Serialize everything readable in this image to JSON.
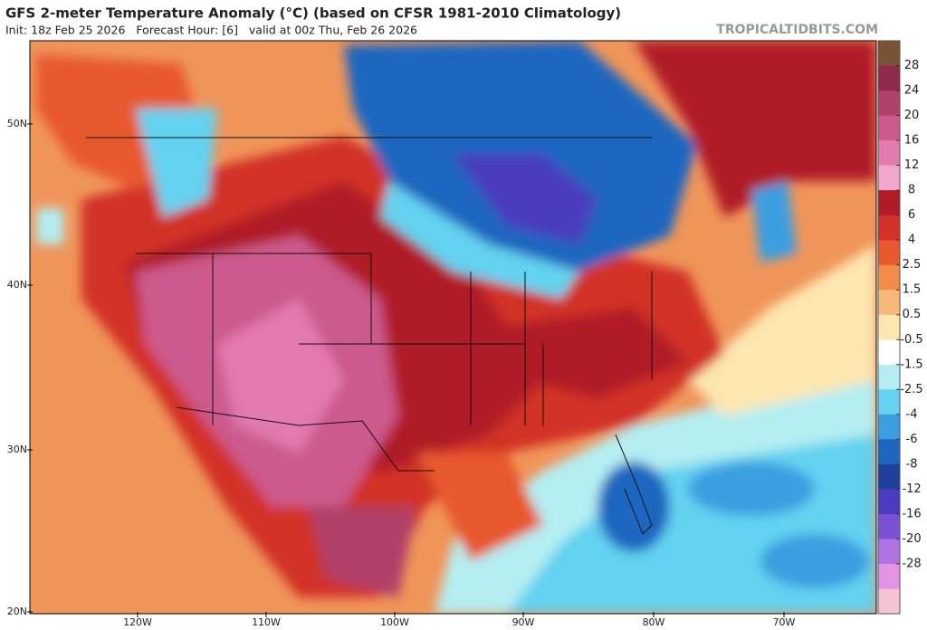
{
  "header": {
    "title": "GFS 2-meter Temperature Anomaly (°C) (based on CFSR 1981-2010 Climatology)",
    "subtitle": "Init: 18z Feb 25 2026   Forecast Hour: [6]   valid at 00z Thu, Feb 26 2026",
    "watermark": "TROPICALTIDBITS.COM"
  },
  "map": {
    "lat_labels": [
      "50N",
      "40N",
      "30N",
      "20N"
    ],
    "lon_labels": [
      "120W",
      "110W",
      "100W",
      "90W",
      "80W",
      "70W"
    ]
  },
  "colorbar": {
    "ticks": [
      28,
      24,
      20,
      16,
      12,
      8,
      6,
      4,
      2.5,
      1.5,
      0.5,
      -0.5,
      -1.5,
      -2.5,
      -4,
      -6,
      -8,
      -12,
      -16,
      -20,
      -28
    ],
    "colors": [
      "#7a5236",
      "#8e2b4c",
      "#b04068",
      "#cc5a8c",
      "#e27aae",
      "#f2a6cc",
      "#b01c26",
      "#d23028",
      "#e8582e",
      "#f28a48",
      "#f8b878",
      "#fde6b0",
      "#ffffff",
      "#b4eef2",
      "#64d2f0",
      "#3a9ee0",
      "#1e66c0",
      "#20409e",
      "#4a3cbe",
      "#7c50d2",
      "#b072e2",
      "#e094e2",
      "#f4c4d4"
    ]
  }
}
